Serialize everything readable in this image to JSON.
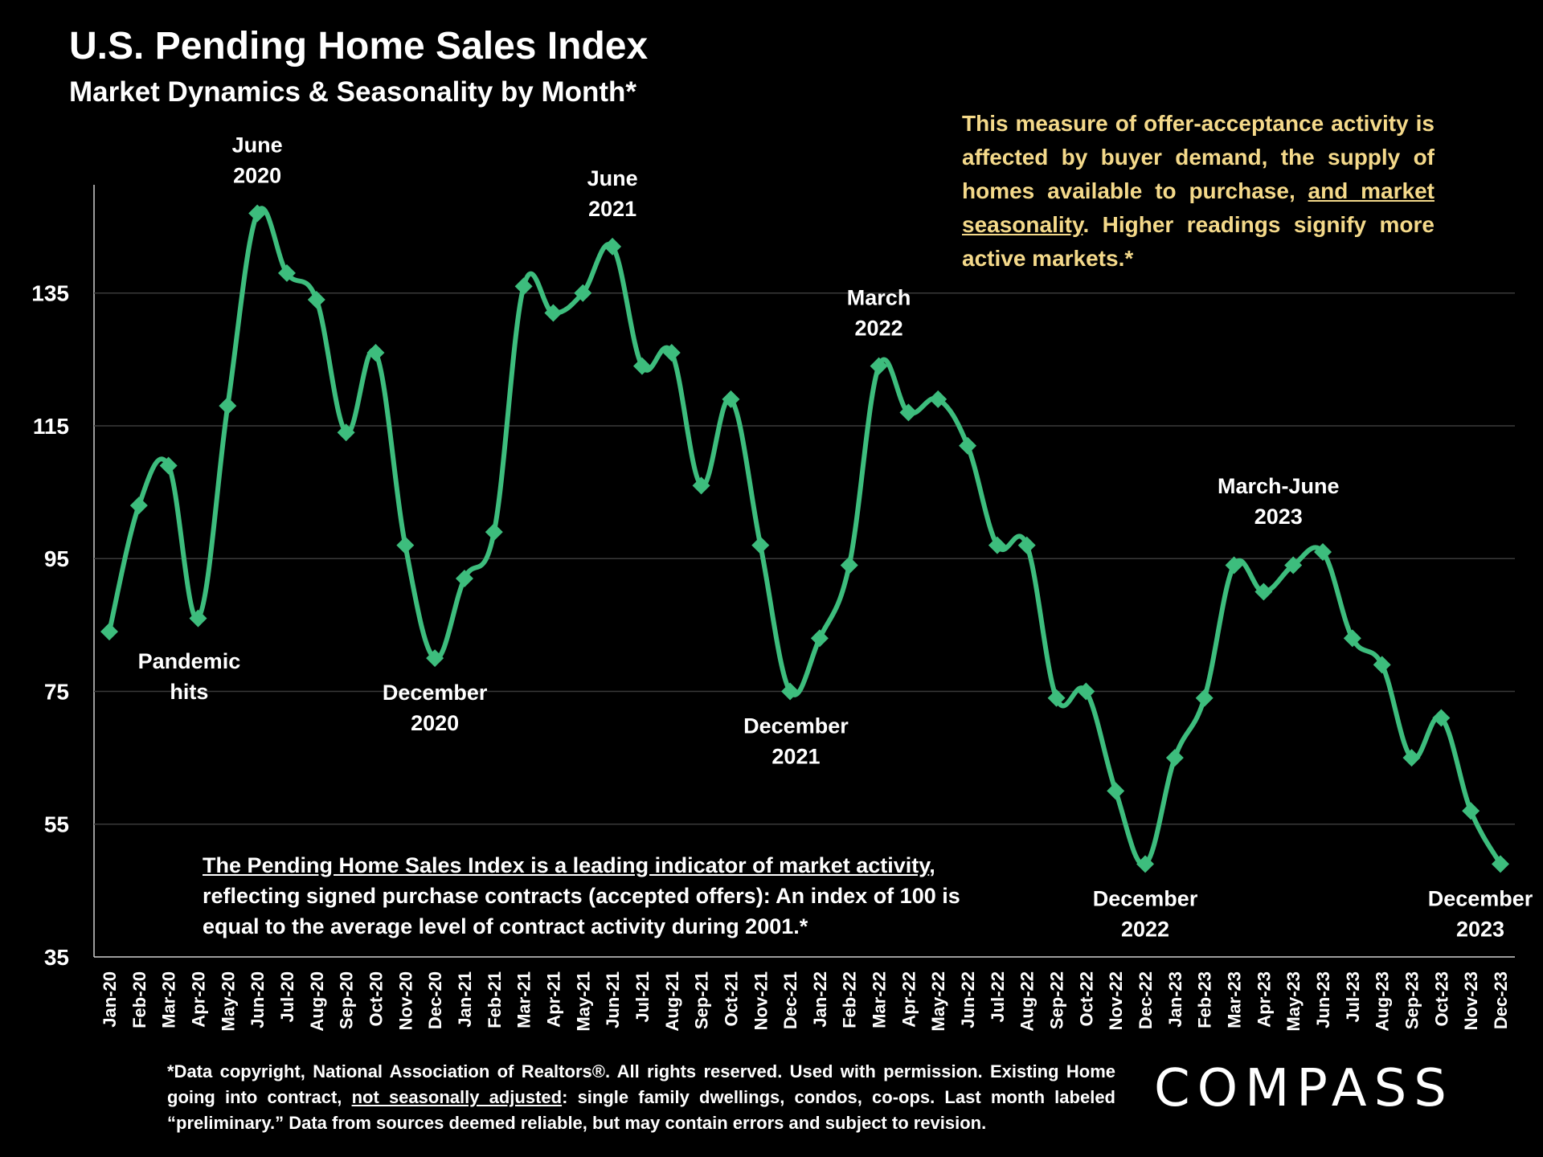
{
  "header": {
    "title": "U.S. Pending Home Sales Index",
    "subtitle": "Market Dynamics & Seasonality by Month*"
  },
  "description": {
    "part1": "This measure of offer-acceptance activity is affected by buyer demand, the supply of homes available to purchase, ",
    "link": "and market seasonality",
    "part2": ". Higher readings signify more active markets.*"
  },
  "note": {
    "underlined": "The Pending Home Sales Index is a leading indicator of market activity",
    "rest": ", reflecting signed purchase contracts (accepted offers): An index of 100 is equal to the average level of contract activity during 2001.*"
  },
  "footnote": {
    "part1": "*Data copyright, National Association of Realtors®. All rights reserved. Used with permission. Existing Home going into contract, ",
    "underlined": "not seasonally adjusted",
    "part2": ":  single family dwellings, condos, co-ops. Last month labeled “preliminary.” Data from sources deemed reliable, but may contain errors and subject to revision."
  },
  "brand": {
    "logo": "COMPASS"
  },
  "colors": {
    "line": "#3dbd7d",
    "background": "#000000",
    "description": "#f4d98a",
    "grid": "#3a3a3a"
  },
  "chart_data": {
    "type": "line",
    "title": "U.S. Pending Home Sales Index",
    "ylim": [
      35,
      150
    ],
    "yticks": [
      35,
      55,
      75,
      95,
      115,
      135
    ],
    "grid": true,
    "categories": [
      "Jan-20",
      "Feb-20",
      "Mar-20",
      "Apr-20",
      "May-20",
      "Jun-20",
      "Jul-20",
      "Aug-20",
      "Sep-20",
      "Oct-20",
      "Nov-20",
      "Dec-20",
      "Jan-21",
      "Feb-21",
      "Mar-21",
      "Apr-21",
      "May-21",
      "Jun-21",
      "Jul-21",
      "Aug-21",
      "Sep-21",
      "Oct-21",
      "Nov-21",
      "Dec-21",
      "Jan-22",
      "Feb-22",
      "Mar-22",
      "Apr-22",
      "May-22",
      "Jun-22",
      "Jul-22",
      "Aug-22",
      "Sep-22",
      "Oct-22",
      "Nov-22",
      "Dec-22",
      "Jan-23",
      "Feb-23",
      "Mar-23",
      "Apr-23",
      "May-23",
      "Jun-23",
      "Jul-23",
      "Aug-23",
      "Sep-23",
      "Oct-23",
      "Nov-23",
      "Dec-23"
    ],
    "series": [
      {
        "name": "Pending Home Sales Index",
        "values": [
          84,
          103,
          109,
          86,
          118,
          147,
          138,
          134,
          114,
          126,
          97,
          80,
          92,
          99,
          136,
          132,
          135,
          142,
          124,
          126,
          106,
          119,
          97,
          75,
          83,
          94,
          124,
          117,
          119,
          112,
          97,
          97,
          74,
          75,
          60,
          49,
          65,
          74,
          94,
          90,
          94,
          96,
          83,
          79,
          65,
          71,
          57,
          49
        ]
      }
    ],
    "annotations": [
      {
        "lines": [
          "June",
          "2020"
        ],
        "index": 5,
        "side": "above"
      },
      {
        "lines": [
          "June",
          "2021"
        ],
        "index": 17,
        "side": "above"
      },
      {
        "lines": [
          "March",
          "2022"
        ],
        "index": 26,
        "side": "above"
      },
      {
        "lines": [
          "March-June",
          "2023"
        ],
        "index": 39.5,
        "side": "above"
      },
      {
        "lines": [
          "Pandemic",
          "hits"
        ],
        "index": 2.7,
        "side": "below"
      },
      {
        "lines": [
          "December",
          "2020"
        ],
        "index": 11,
        "side": "below"
      },
      {
        "lines": [
          "December",
          "2021"
        ],
        "index": 23.2,
        "side": "below"
      },
      {
        "lines": [
          "December",
          "2022"
        ],
        "index": 35,
        "side": "below"
      },
      {
        "lines": [
          "December",
          "2023"
        ],
        "index": 46.5,
        "side": "below"
      }
    ]
  }
}
